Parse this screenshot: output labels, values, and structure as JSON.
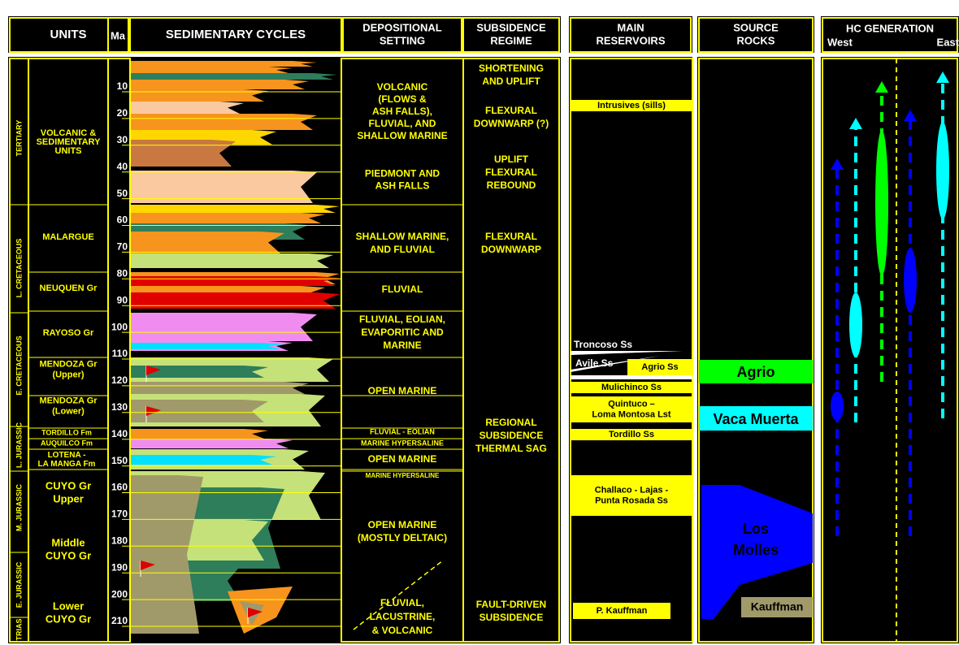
{
  "header": {
    "units": "UNITS",
    "ma": "Ma",
    "cycles": "SEDIMENTARY CYCLES",
    "depositional": [
      "DEPOSITIONAL",
      "SETTING"
    ],
    "subsidence": [
      "SUBSIDENCE",
      "REGIME"
    ],
    "reservoirs": [
      "MAIN",
      "RESERVOIRS"
    ],
    "source": [
      "SOURCE",
      "ROCKS"
    ],
    "hc": "HC GENERATION",
    "west": "West",
    "east": "East"
  },
  "ma_ticks": [
    10,
    20,
    30,
    40,
    50,
    60,
    70,
    80,
    90,
    100,
    110,
    120,
    130,
    140,
    150,
    160,
    170,
    180,
    190,
    200,
    210
  ],
  "periods": [
    "TERTIARY",
    "L. CRETACEOUS",
    "E. CRETACEOUS",
    "L. JURASSIC",
    "M. JURASSIC",
    "E. JURASSIC",
    "TRIAS"
  ],
  "units": [
    [
      "VOLCANIC &",
      "SEDIMENTARY",
      "UNITS"
    ],
    [
      "MALARGUE"
    ],
    [
      "NEUQUEN Gr"
    ],
    [
      "RAYOSO Gr"
    ],
    [
      "MENDOZA Gr",
      "(Upper)"
    ],
    [
      "MENDOZA Gr",
      "(Lower)"
    ],
    [
      "TORDILLO Fm"
    ],
    [
      "AUQUILCO Fm"
    ],
    [
      "LOTENA -",
      "LA MANGA Fm"
    ],
    [
      "CUYO Gr",
      "Upper"
    ],
    [
      "Middle",
      "CUYO Gr"
    ],
    [
      "Lower",
      "CUYO Gr"
    ]
  ],
  "depositional": [
    [
      "VOLCANIC",
      "(FLOWS &",
      "ASH FALLS),",
      "FLUVIAL, AND",
      "SHALLOW MARINE"
    ],
    [
      "PIEDMONT AND",
      "ASH FALLS"
    ],
    [
      "SHALLOW MARINE,",
      "AND FLUVIAL"
    ],
    [
      "FLUVIAL"
    ],
    [
      "FLUVIAL, EOLIAN,",
      "EVAPORITIC AND",
      "MARINE"
    ],
    [
      "OPEN MARINE"
    ],
    [
      "FLUVIAL - EOLIAN"
    ],
    [
      "MARINE HYPERSALINE"
    ],
    [
      "OPEN MARINE"
    ],
    [
      "MARINE HYPERSALINE"
    ],
    [
      "OPEN MARINE",
      "(MOSTLY DELTAIC)"
    ],
    [
      "FLUVIAL,",
      "LACUSTRINE,",
      "& VOLCANIC"
    ]
  ],
  "subsidence": [
    [
      "SHORTENING",
      "AND UPLIFT"
    ],
    [
      "FLEXURAL",
      "DOWNWARP (?)"
    ],
    [
      "UPLIFT",
      "FLEXURAL",
      "REBOUND"
    ],
    [
      "FLEXURAL",
      "DOWNWARP"
    ],
    [
      "REGIONAL",
      "SUBSIDENCE",
      "THERMAL SAG"
    ],
    [
      "FAULT-DRIVEN",
      "SUBSIDENCE"
    ]
  ],
  "reservoirs": [
    [
      "Intrusives (sills)"
    ],
    [
      "Troncoso Ss"
    ],
    [
      "Avile Ss"
    ],
    [
      "Agrio Ss"
    ],
    [
      "Mulichinco Ss"
    ],
    [
      "Quintuco –",
      "Loma Montosa Lst"
    ],
    [
      "Tordillo Ss"
    ],
    [
      "Challaco - Lajas -",
      "Punta Rosada Ss"
    ],
    [
      "P. Kauffman"
    ]
  ],
  "source_rocks": [
    [
      "Agrio"
    ],
    [
      "Vaca Muerta"
    ],
    [
      "Los",
      "Molles"
    ],
    [
      "Kauffman"
    ]
  ]
}
